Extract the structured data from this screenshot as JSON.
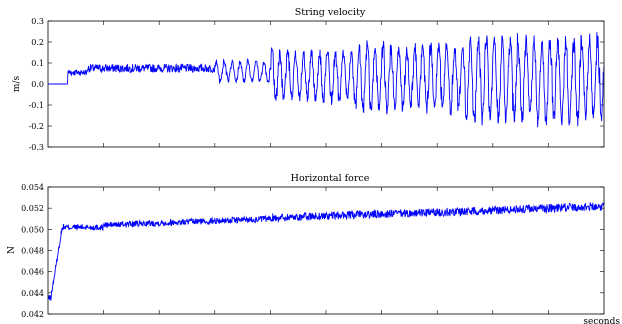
{
  "chart_data": [
    {
      "type": "line",
      "title": "String velocity",
      "xlabel": "",
      "ylabel": "m/s",
      "ylim": [
        -0.3,
        0.3
      ],
      "y_ticks": [
        "0.3",
        "0.2",
        "0.1",
        "0.0",
        "-0.1",
        "-0.2",
        "-0.3"
      ],
      "y_tick_values": [
        0.3,
        0.2,
        0.1,
        0.0,
        -0.1,
        -0.2,
        -0.3
      ],
      "x_tick_count": 10,
      "grid": false,
      "series": [
        {
          "color": "#0000ff",
          "segments": [
            {
              "from": 0.0,
              "to": 0.035,
              "mean": 0.0,
              "amp": 0.0
            },
            {
              "from": 0.035,
              "to": 0.07,
              "mean": 0.055,
              "amp": 0.015
            },
            {
              "from": 0.07,
              "to": 0.3,
              "mean": 0.075,
              "amp": 0.02
            },
            {
              "from": 0.3,
              "to": 0.4,
              "mean": 0.06,
              "amp": 0.06
            },
            {
              "from": 0.4,
              "to": 0.55,
              "mean": 0.04,
              "amp": 0.14
            },
            {
              "from": 0.55,
              "to": 0.75,
              "mean": 0.03,
              "amp": 0.18
            },
            {
              "from": 0.75,
              "to": 1.0,
              "mean": 0.02,
              "amp": 0.23
            }
          ]
        }
      ]
    },
    {
      "type": "line",
      "title": "Horizontal force",
      "xlabel": "seconds",
      "ylabel": "N",
      "ylim": [
        0.042,
        0.054
      ],
      "y_ticks": [
        "0.054",
        "0.052",
        "0.050",
        "0.048",
        "0.046",
        "0.044",
        "0.042"
      ],
      "y_tick_values": [
        0.054,
        0.052,
        0.05,
        0.048,
        0.046,
        0.044,
        0.042
      ],
      "x_tick_count": 10,
      "grid": false,
      "series": [
        {
          "color": "#0000ff",
          "segments": [
            {
              "from": 0.0,
              "to": 0.005,
              "mean": 0.0435,
              "amp": 0.0003
            },
            {
              "from": 0.005,
              "to": 0.025,
              "mean_start": 0.0435,
              "mean_end": 0.05,
              "amp": 0.0003
            },
            {
              "from": 0.025,
              "to": 0.1,
              "mean": 0.0502,
              "amp": 0.0003
            },
            {
              "from": 0.1,
              "to": 0.4,
              "mean_start": 0.0504,
              "mean_end": 0.051,
              "amp": 0.0003
            },
            {
              "from": 0.4,
              "to": 0.7,
              "mean_start": 0.0511,
              "mean_end": 0.0516,
              "amp": 0.0004
            },
            {
              "from": 0.7,
              "to": 1.0,
              "mean_start": 0.0516,
              "mean_end": 0.0522,
              "amp": 0.0004
            }
          ]
        }
      ]
    }
  ]
}
